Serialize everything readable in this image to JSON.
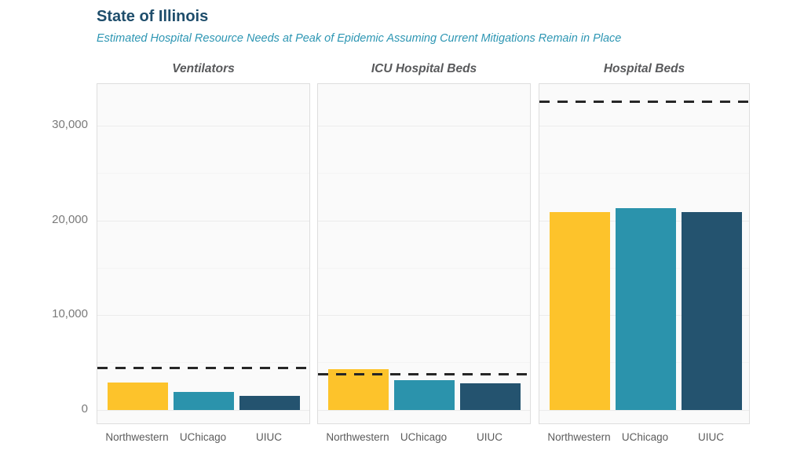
{
  "header": {
    "title": "State of Illinois",
    "subtitle": "Estimated Hospital Resource Needs at Peak of Epidemic Assuming Current Mitigations Remain in Place"
  },
  "colors": {
    "title": "#1e4d6b",
    "subtitle": "#2d96b3",
    "capacity_line": "#262626",
    "panel_bg": "#fafafa",
    "panel_border": "#dedede",
    "grid_major": "#ececec",
    "grid_minor": "#f4f4f4",
    "axis_text": "#7a7a7a",
    "bar_colors": {
      "Northwestern": "#fdc32b",
      "UChicago": "#2b93ac",
      "UIUC": "#24536f"
    }
  },
  "chart_data": {
    "type": "bar",
    "title": "State of Illinois",
    "subtitle": "Estimated Hospital Resource Needs at Peak of Epidemic Assuming Current Mitigations Remain in Place",
    "categories": [
      "Northwestern",
      "UChicago",
      "UIUC"
    ],
    "facets": [
      {
        "label": "Ventilators",
        "capacity_dashed_line": 4450,
        "values": [
          2850,
          1900,
          1500
        ]
      },
      {
        "label": "ICU Hospital Beds",
        "capacity_dashed_line": 3750,
        "values": [
          4300,
          3100,
          2800
        ]
      },
      {
        "label": "Hospital Beds",
        "capacity_dashed_line": 32500,
        "values": [
          20900,
          21300,
          20900
        ]
      }
    ],
    "bar_colors_by_category": {
      "Northwestern": "#fdc32b",
      "UChicago": "#2b93ac",
      "UIUC": "#24536f"
    },
    "ylabel": "",
    "xlabel": "",
    "yticks": [
      0,
      10000,
      20000,
      30000
    ],
    "ytick_labels": [
      "0",
      "10,000",
      "20,000",
      "30,000"
    ],
    "minor_yticks": [
      5000,
      15000,
      25000
    ],
    "ylim": [
      -1600,
      34400
    ],
    "grid": "horizontal major+minor",
    "legend": "none"
  }
}
